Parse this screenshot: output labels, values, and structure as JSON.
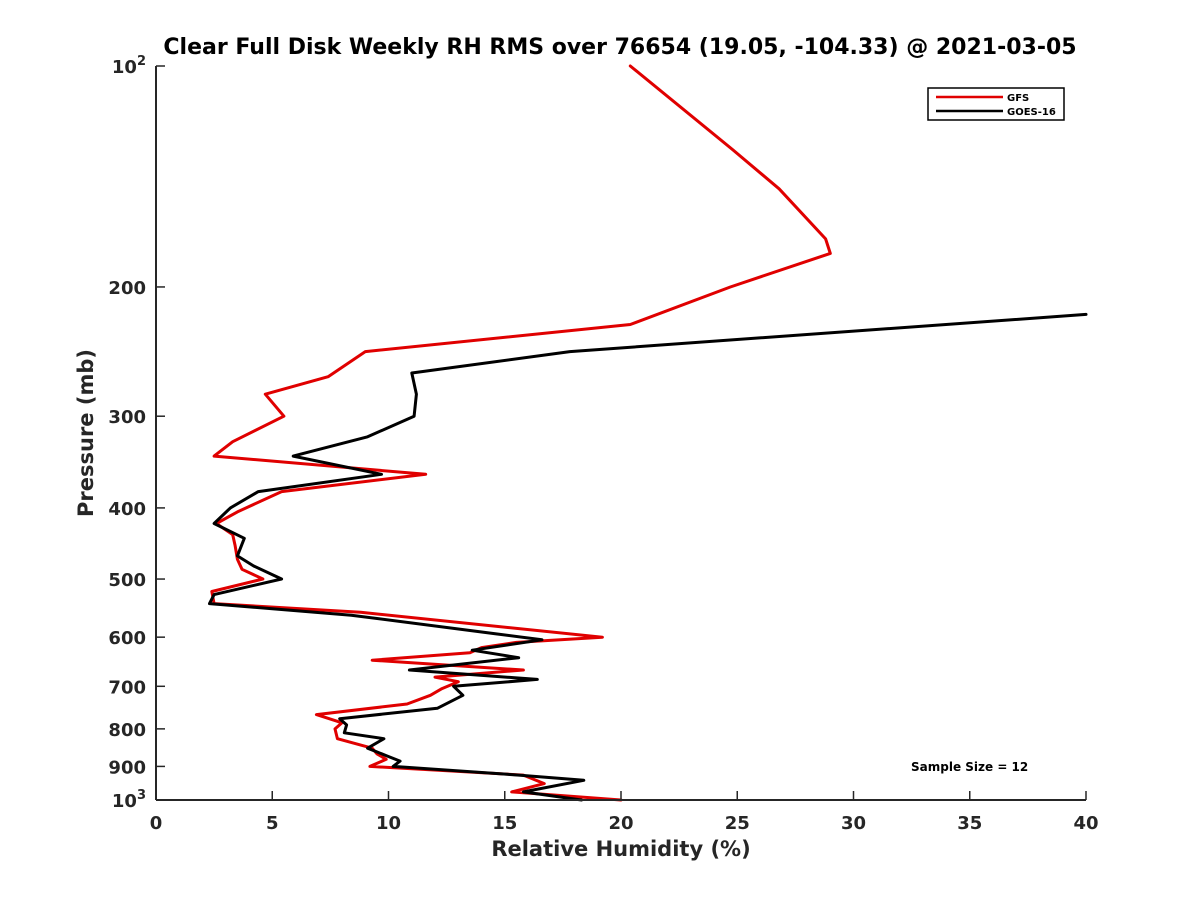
{
  "chart_data": {
    "type": "line",
    "title": "Clear Full Disk Weekly RH RMS over 76654 (19.05, -104.33) @ 2021-03-05",
    "xlabel": "Relative Humidity (%)",
    "ylabel": "Pressure (mb)",
    "xlim": [
      0,
      40
    ],
    "ylim": [
      100,
      1000
    ],
    "yscale": "log",
    "y_reversed": true,
    "xticks": [
      0,
      5,
      10,
      15,
      20,
      25,
      30,
      35,
      40
    ],
    "yticks": [
      {
        "value": 100,
        "label": "10",
        "sup": "2"
      },
      {
        "value": 200,
        "label": "200"
      },
      {
        "value": 300,
        "label": "300"
      },
      {
        "value": 400,
        "label": "400"
      },
      {
        "value": 500,
        "label": "500"
      },
      {
        "value": 600,
        "label": "600"
      },
      {
        "value": 700,
        "label": "700"
      },
      {
        "value": 800,
        "label": "800"
      },
      {
        "value": 900,
        "label": "900"
      },
      {
        "value": 1000,
        "label": "10",
        "sup": "3"
      }
    ],
    "legend": "top-right",
    "grid": false,
    "annotation": "Sample Size = 12",
    "series": [
      {
        "name": "GFS",
        "color": "#e00000",
        "points": [
          [
            20.0,
            1000
          ],
          [
            15.3,
            975
          ],
          [
            16.7,
            950
          ],
          [
            15.8,
            925
          ],
          [
            9.2,
            900
          ],
          [
            9.9,
            880
          ],
          [
            9.5,
            865
          ],
          [
            9.3,
            850
          ],
          [
            7.8,
            825
          ],
          [
            7.7,
            800
          ],
          [
            8.0,
            785
          ],
          [
            6.9,
            765
          ],
          [
            10.8,
            740
          ],
          [
            11.8,
            720
          ],
          [
            12.3,
            705
          ],
          [
            13.0,
            690
          ],
          [
            12.0,
            680
          ],
          [
            15.8,
            665
          ],
          [
            9.3,
            645
          ],
          [
            13.5,
            630
          ],
          [
            14.0,
            620
          ],
          [
            15.5,
            610
          ],
          [
            19.2,
            600
          ],
          [
            8.8,
            555
          ],
          [
            2.5,
            540
          ],
          [
            2.4,
            520
          ],
          [
            4.6,
            500
          ],
          [
            3.7,
            485
          ],
          [
            3.5,
            470
          ],
          [
            3.4,
            450
          ],
          [
            3.3,
            435
          ],
          [
            2.6,
            420
          ],
          [
            3.5,
            405
          ],
          [
            5.4,
            380
          ],
          [
            11.6,
            360
          ],
          [
            2.5,
            340
          ],
          [
            3.3,
            325
          ],
          [
            5.5,
            300
          ],
          [
            4.7,
            280
          ],
          [
            7.4,
            265
          ],
          [
            9.0,
            245
          ],
          [
            20.4,
            225
          ],
          [
            24.7,
            200
          ],
          [
            29.0,
            180
          ],
          [
            28.8,
            172
          ],
          [
            26.8,
            147
          ],
          [
            24.8,
            130
          ],
          [
            20.4,
            100
          ]
        ]
      },
      {
        "name": "GOES-16",
        "color": "#000000",
        "points": [
          [
            18.3,
            1000
          ],
          [
            15.8,
            975
          ],
          [
            18.4,
            940
          ],
          [
            15.6,
            925
          ],
          [
            10.2,
            900
          ],
          [
            10.5,
            885
          ],
          [
            9.9,
            870
          ],
          [
            9.1,
            850
          ],
          [
            9.8,
            825
          ],
          [
            8.1,
            810
          ],
          [
            8.2,
            790
          ],
          [
            7.9,
            775
          ],
          [
            12.1,
            750
          ],
          [
            13.2,
            720
          ],
          [
            12.8,
            700
          ],
          [
            16.4,
            685
          ],
          [
            10.9,
            665
          ],
          [
            15.6,
            640
          ],
          [
            13.6,
            625
          ],
          [
            16.6,
            605
          ],
          [
            8.4,
            560
          ],
          [
            2.3,
            540
          ],
          [
            2.5,
            525
          ],
          [
            5.4,
            500
          ],
          [
            4.2,
            480
          ],
          [
            3.5,
            465
          ],
          [
            3.8,
            440
          ],
          [
            2.5,
            420
          ],
          [
            3.2,
            400
          ],
          [
            4.4,
            380
          ],
          [
            9.7,
            360
          ],
          [
            5.9,
            340
          ],
          [
            9.1,
            320
          ],
          [
            11.1,
            300
          ],
          [
            11.2,
            280
          ],
          [
            11.0,
            262
          ],
          [
            17.8,
            245
          ],
          [
            40.0,
            218
          ]
        ]
      }
    ]
  }
}
